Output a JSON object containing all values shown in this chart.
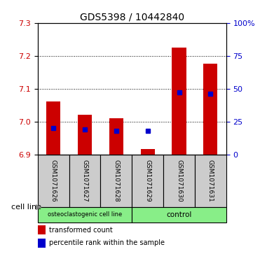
{
  "title": "GDS5398 / 10442840",
  "samples": [
    "GSM1071626",
    "GSM1071627",
    "GSM1071628",
    "GSM1071629",
    "GSM1071630",
    "GSM1071631"
  ],
  "bar_bottoms": [
    6.9,
    6.9,
    6.9,
    6.9,
    6.9,
    6.9
  ],
  "bar_tops": [
    7.06,
    7.02,
    7.01,
    6.915,
    7.225,
    7.175
  ],
  "bar_color": "#cc0000",
  "blue_percentile": [
    20,
    19,
    18,
    18,
    47,
    46
  ],
  "blue_color": "#0000cc",
  "ylim": [
    6.9,
    7.3
  ],
  "yticks_left": [
    6.9,
    7.0,
    7.1,
    7.2,
    7.3
  ],
  "yticks_right": [
    0,
    25,
    50,
    75,
    100
  ],
  "yticks_right_labels": [
    "0",
    "25",
    "50",
    "75",
    "100%"
  ],
  "group1_label": "osteoclastogenic cell line",
  "group2_label": "control",
  "group1_count": 3,
  "group2_count": 3,
  "group_color": "#88ee88",
  "cell_line_label": "cell line",
  "legend_red_label": "transformed count",
  "legend_blue_label": "percentile rank within the sample",
  "bar_width": 0.45,
  "plot_bg": "#ffffff",
  "label_box_color": "#cccccc",
  "grid_linestyle": "dotted"
}
